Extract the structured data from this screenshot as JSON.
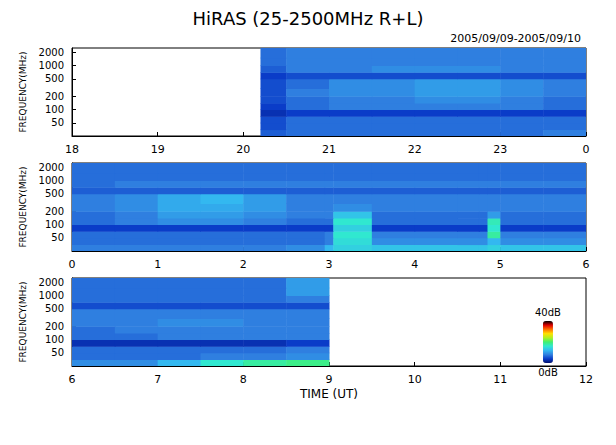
{
  "chart_data": {
    "type": "heatmap",
    "title": "HiRAS (25-2500MHz R+L)",
    "subtitle": "2005/09/09-2005/09/10",
    "xlabel": "TIME (UT)",
    "ylabel": "FREQUENCY(MHz)",
    "log": "y",
    "ylim": [
      25,
      2500
    ],
    "yticks": [
      50,
      100,
      200,
      500,
      1000,
      2000
    ],
    "freq_bins": [
      25,
      35,
      50,
      70,
      100,
      140,
      200,
      300,
      500,
      700,
      1000,
      1500,
      2500
    ],
    "colorbar": {
      "range": [
        0,
        40
      ],
      "ticks": [
        {
          "value": 0,
          "label": "0dB"
        },
        {
          "value": 40,
          "label": "40dB"
        }
      ]
    },
    "panels": [
      {
        "xlim": [
          18,
          24
        ],
        "xticks": [
          18,
          19,
          20,
          21,
          22,
          23,
          {
            "value": 24,
            "label": "0"
          }
        ],
        "time_bins": [
          20.2,
          20.5,
          21,
          21.5,
          22,
          22.5,
          23,
          23.5,
          24
        ],
        "cells": [
          [
            6,
            7,
            7,
            7,
            7,
            7,
            7,
            8
          ],
          [
            5,
            7,
            7,
            7,
            7,
            7,
            7,
            7
          ],
          [
            5,
            7,
            7,
            7,
            7,
            7,
            7,
            7
          ],
          [
            3,
            4,
            4,
            4,
            4,
            4,
            4,
            4
          ],
          [
            4,
            7,
            8,
            8,
            8,
            8,
            8,
            7
          ],
          [
            5,
            7,
            8,
            8,
            9,
            9,
            8,
            7
          ],
          [
            5,
            8,
            9,
            9,
            10,
            10,
            9,
            8
          ],
          [
            5,
            7,
            9,
            9,
            10,
            10,
            9,
            8
          ],
          [
            4,
            5,
            5,
            5,
            5,
            5,
            5,
            5
          ],
          [
            6,
            8,
            8,
            9,
            9,
            9,
            8,
            8
          ],
          [
            7,
            8,
            8,
            8,
            8,
            8,
            8,
            8
          ],
          [
            7,
            8,
            8,
            8,
            8,
            8,
            8,
            8
          ]
        ]
      },
      {
        "xlim": [
          0,
          6
        ],
        "xticks": [
          0,
          1,
          2,
          3,
          4,
          5,
          6
        ],
        "time_bins": [
          0,
          0.5,
          1,
          1.5,
          2,
          2.5,
          2.95,
          3.05,
          3.5,
          4,
          4.5,
          4.75,
          4.85,
          5,
          5.5,
          6
        ],
        "cells": [
          [
            8,
            8,
            8,
            8,
            8,
            9,
            12,
            14,
            13,
            13,
            13,
            13,
            14,
            13,
            13
          ],
          [
            7,
            7,
            7,
            7,
            7,
            7,
            8,
            15,
            9,
            9,
            9,
            9,
            12,
            9,
            9
          ],
          [
            7,
            7,
            7,
            7,
            7,
            7,
            8,
            16,
            8,
            8,
            8,
            8,
            18,
            8,
            8
          ],
          [
            4,
            4,
            4,
            4,
            4,
            4,
            4,
            14,
            4,
            4,
            4,
            4,
            16,
            4,
            4
          ],
          [
            7,
            8,
            9,
            9,
            8,
            7,
            7,
            16,
            7,
            7,
            7,
            7,
            17,
            7,
            7
          ],
          [
            7,
            8,
            10,
            10,
            9,
            8,
            8,
            13,
            7,
            7,
            7,
            7,
            10,
            7,
            7
          ],
          [
            8,
            9,
            11,
            11,
            10,
            8,
            8,
            9,
            8,
            8,
            8,
            8,
            8,
            8,
            8
          ],
          [
            8,
            9,
            11,
            12,
            10,
            8,
            8,
            8,
            8,
            8,
            8,
            8,
            8,
            8,
            8
          ],
          [
            6,
            6,
            6,
            6,
            6,
            6,
            6,
            6,
            6,
            6,
            6,
            6,
            6,
            6,
            6
          ],
          [
            7,
            8,
            8,
            8,
            8,
            8,
            8,
            8,
            8,
            8,
            8,
            8,
            8,
            8,
            8
          ],
          [
            7,
            7,
            7,
            7,
            7,
            7,
            7,
            7,
            7,
            7,
            7,
            7,
            7,
            7,
            7
          ],
          [
            7,
            7,
            7,
            7,
            7,
            7,
            7,
            7,
            7,
            7,
            7,
            7,
            7,
            7,
            7
          ]
        ]
      },
      {
        "xlim": [
          6,
          12
        ],
        "xticks": [
          6,
          7,
          8,
          9,
          10,
          11,
          12
        ],
        "time_bins": [
          6,
          6.5,
          7,
          7.5,
          8,
          8.5,
          9
        ],
        "cells": [
          [
            9,
            9,
            12,
            16,
            18,
            19
          ],
          [
            7,
            7,
            7,
            8,
            8,
            9
          ],
          [
            7,
            7,
            7,
            7,
            7,
            8
          ],
          [
            3,
            3,
            3,
            3,
            3,
            4
          ],
          [
            7,
            7,
            8,
            8,
            8,
            8
          ],
          [
            7,
            8,
            8,
            8,
            8,
            8
          ],
          [
            8,
            8,
            9,
            9,
            8,
            8
          ],
          [
            8,
            8,
            8,
            8,
            8,
            8
          ],
          [
            5,
            5,
            5,
            5,
            5,
            5
          ],
          [
            7,
            7,
            7,
            7,
            7,
            8
          ],
          [
            7,
            7,
            7,
            7,
            7,
            10
          ],
          [
            7,
            7,
            7,
            7,
            7,
            10
          ]
        ]
      }
    ]
  }
}
